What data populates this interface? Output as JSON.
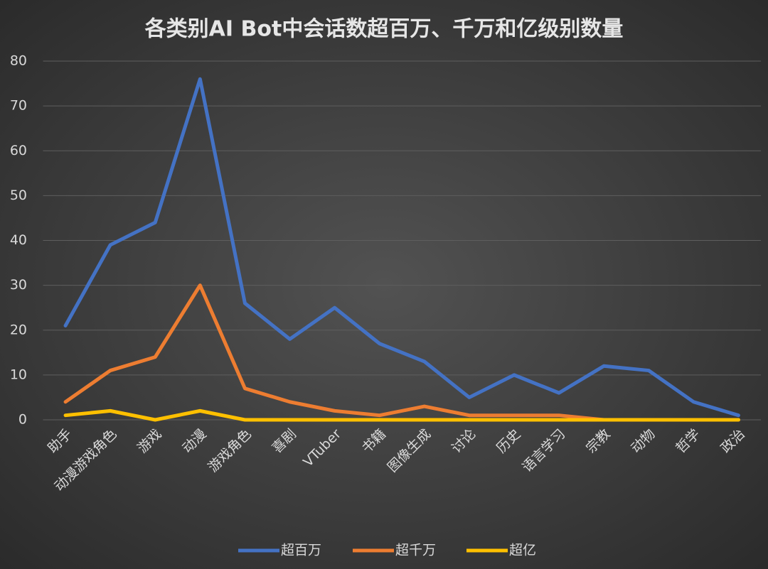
{
  "chart_data": {
    "type": "line",
    "title": "各类别AI Bot中会话数超百万、千万和亿级别数量",
    "categories": [
      "助手",
      "动漫游戏角色",
      "游戏",
      "动漫",
      "游戏角色",
      "喜剧",
      "VTuber",
      "书籍",
      "图像生成",
      "讨论",
      "历史",
      "语言学习",
      "宗教",
      "动物",
      "哲学",
      "政治"
    ],
    "series": [
      {
        "name": "超百万",
        "color": "#4472c4",
        "values": [
          21,
          39,
          44,
          76,
          26,
          18,
          25,
          17,
          13,
          5,
          10,
          6,
          12,
          11,
          4,
          1
        ]
      },
      {
        "name": "超千万",
        "color": "#ed7d31",
        "values": [
          4,
          11,
          14,
          30,
          7,
          4,
          2,
          1,
          3,
          1,
          1,
          1,
          0,
          0,
          0,
          0
        ]
      },
      {
        "name": "超亿",
        "color": "#ffc000",
        "values": [
          1,
          2,
          0,
          2,
          0,
          0,
          0,
          0,
          0,
          0,
          0,
          0,
          0,
          0,
          0,
          0
        ]
      }
    ],
    "ylim": [
      0,
      80
    ],
    "yticks": [
      0,
      10,
      20,
      30,
      40,
      50,
      60,
      70,
      80
    ],
    "grid": true,
    "legend": "bottom"
  }
}
